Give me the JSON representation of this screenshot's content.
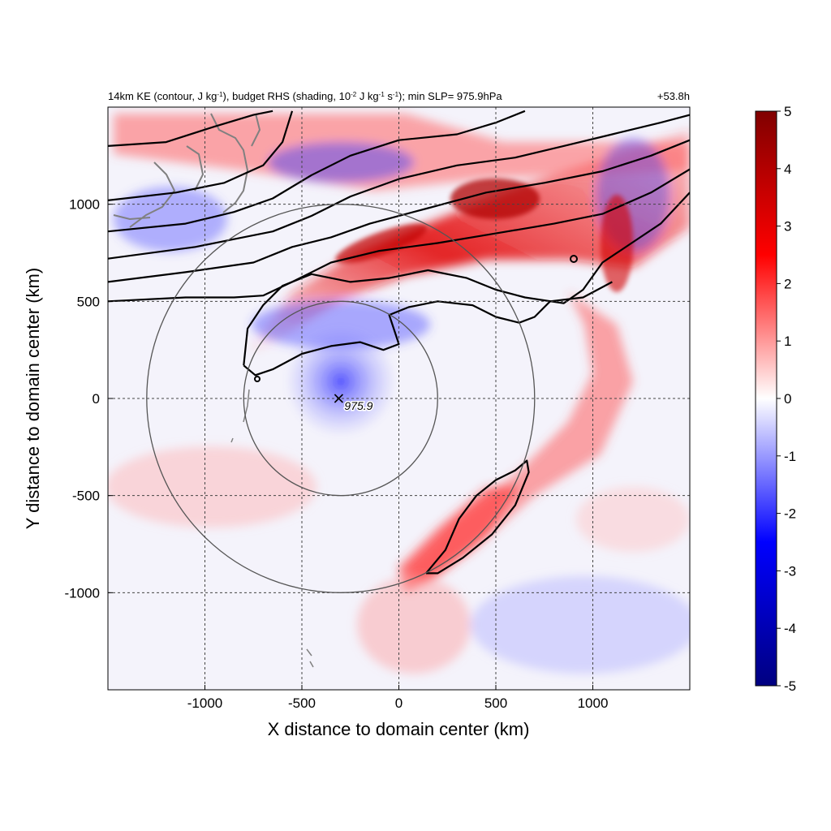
{
  "chart_data": {
    "type": "heatmap",
    "title_left": {
      "parts": [
        {
          "t": "14km KE (contour, J kg"
        },
        {
          "t": "-1",
          "sup": true
        },
        {
          "t": "), budget RHS (shading, 10"
        },
        {
          "t": "-2",
          "sup": true
        },
        {
          "t": " J kg"
        },
        {
          "t": "-1",
          "sup": true
        },
        {
          "t": " s"
        },
        {
          "t": "-1",
          "sup": true
        },
        {
          "t": "); min SLP= 975.9hPa"
        }
      ]
    },
    "title_right": "+53.8h",
    "xlabel": "X distance to domain center (km)",
    "ylabel": "Y distance to domain center (km)",
    "xlim": [
      -1500,
      1500
    ],
    "ylim": [
      -1500,
      1500
    ],
    "xticks": [
      {
        "v": -1000,
        "label": "-1000"
      },
      {
        "v": -500,
        "label": "-500"
      },
      {
        "v": 0,
        "label": "0"
      },
      {
        "v": 500,
        "label": "500"
      },
      {
        "v": 1000,
        "label": "1000"
      }
    ],
    "yticks": [
      {
        "v": -1000,
        "label": "-1000"
      },
      {
        "v": -500,
        "label": "-500"
      },
      {
        "v": 0,
        "label": "0"
      },
      {
        "v": 500,
        "label": "500"
      },
      {
        "v": 1000,
        "label": "1000"
      }
    ],
    "grid": true,
    "grid_style": "dashed",
    "colorbar": {
      "range": [
        -5,
        5
      ],
      "ticks": [
        {
          "v": 5,
          "label": "5"
        },
        {
          "v": 4,
          "label": "4"
        },
        {
          "v": 3,
          "label": "3"
        },
        {
          "v": 2,
          "label": "2"
        },
        {
          "v": 1,
          "label": "1"
        },
        {
          "v": 0,
          "label": "0"
        },
        {
          "v": -1,
          "label": "-1"
        },
        {
          "v": -2,
          "label": "-2"
        },
        {
          "v": -3,
          "label": "-3"
        },
        {
          "v": -4,
          "label": "-4"
        },
        {
          "v": -5,
          "label": "-5"
        }
      ],
      "colors": [
        "#000080",
        "#0000ff",
        "#ffffff",
        "#ff0000",
        "#800000"
      ]
    },
    "storm_center": {
      "x": -310,
      "y": 0,
      "label": "975.9",
      "min_slp_hpa": 975.9
    },
    "range_circles": [
      {
        "cx": -300,
        "cy": 0,
        "r": 500
      },
      {
        "cx": -300,
        "cy": 0,
        "r": 1000
      }
    ],
    "ke_contours": [
      [
        [
          -1500,
          1300
        ],
        [
          -1200,
          1320
        ],
        [
          -950,
          1400
        ],
        [
          -750,
          1460
        ],
        [
          -650,
          1480
        ]
      ],
      [
        [
          -1500,
          1020
        ],
        [
          -1150,
          1060
        ],
        [
          -900,
          1110
        ],
        [
          -700,
          1200
        ],
        [
          -600,
          1320
        ],
        [
          -550,
          1480
        ]
      ],
      [
        [
          -1500,
          860
        ],
        [
          -1100,
          900
        ],
        [
          -850,
          960
        ],
        [
          -650,
          1030
        ],
        [
          -450,
          1150
        ],
        [
          -250,
          1250
        ],
        [
          0,
          1330
        ],
        [
          300,
          1360
        ],
        [
          500,
          1420
        ],
        [
          650,
          1480
        ]
      ],
      [
        [
          -1500,
          720
        ],
        [
          -1050,
          780
        ],
        [
          -850,
          820
        ],
        [
          -650,
          860
        ],
        [
          -450,
          940
        ],
        [
          -250,
          1040
        ],
        [
          0,
          1130
        ],
        [
          300,
          1200
        ],
        [
          600,
          1240
        ],
        [
          850,
          1300
        ],
        [
          1100,
          1360
        ],
        [
          1350,
          1420
        ],
        [
          1500,
          1460
        ]
      ],
      [
        [
          -1500,
          600
        ],
        [
          -1100,
          650
        ],
        [
          -750,
          700
        ],
        [
          -550,
          780
        ],
        [
          -350,
          830
        ],
        [
          -150,
          900
        ],
        [
          150,
          980
        ],
        [
          450,
          1060
        ],
        [
          750,
          1110
        ],
        [
          1050,
          1170
        ],
        [
          1300,
          1250
        ],
        [
          1500,
          1330
        ]
      ],
      [
        [
          -1500,
          500
        ],
        [
          -1100,
          520
        ],
        [
          -850,
          520
        ],
        [
          -700,
          530
        ],
        [
          -550,
          600
        ],
        [
          -350,
          700
        ],
        [
          -100,
          760
        ],
        [
          200,
          800
        ],
        [
          500,
          850
        ],
        [
          800,
          900
        ],
        [
          1050,
          950
        ],
        [
          1300,
          1060
        ],
        [
          1500,
          1180
        ]
      ],
      [
        [
          -800,
          170
        ],
        [
          -780,
          360
        ],
        [
          -700,
          480
        ],
        [
          -600,
          580
        ],
        [
          -450,
          640
        ],
        [
          -250,
          600
        ],
        [
          -50,
          620
        ],
        [
          150,
          660
        ],
        [
          350,
          620
        ],
        [
          500,
          560
        ],
        [
          650,
          520
        ],
        [
          850,
          490
        ],
        [
          950,
          560
        ],
        [
          1050,
          700
        ],
        [
          1200,
          800
        ],
        [
          1350,
          900
        ],
        [
          1500,
          1060
        ]
      ],
      [
        [
          -800,
          170
        ],
        [
          -740,
          120
        ],
        [
          -650,
          150
        ],
        [
          -500,
          230
        ],
        [
          -350,
          270
        ],
        [
          -200,
          290
        ],
        [
          -80,
          250
        ],
        [
          0,
          280
        ],
        [
          -50,
          430
        ],
        [
          50,
          470
        ],
        [
          200,
          500
        ],
        [
          380,
          480
        ],
        [
          500,
          420
        ],
        [
          620,
          390
        ],
        [
          700,
          420
        ],
        [
          780,
          500
        ],
        [
          950,
          520
        ],
        [
          1100,
          600
        ]
      ],
      [
        [
          140,
          -900
        ],
        [
          240,
          -780
        ],
        [
          310,
          -620
        ],
        [
          400,
          -500
        ],
        [
          500,
          -420
        ],
        [
          600,
          -370
        ],
        [
          660,
          -320
        ],
        [
          670,
          -380
        ],
        [
          600,
          -550
        ],
        [
          480,
          -700
        ],
        [
          330,
          -820
        ],
        [
          200,
          -900
        ],
        [
          140,
          -900
        ]
      ]
    ]
  }
}
